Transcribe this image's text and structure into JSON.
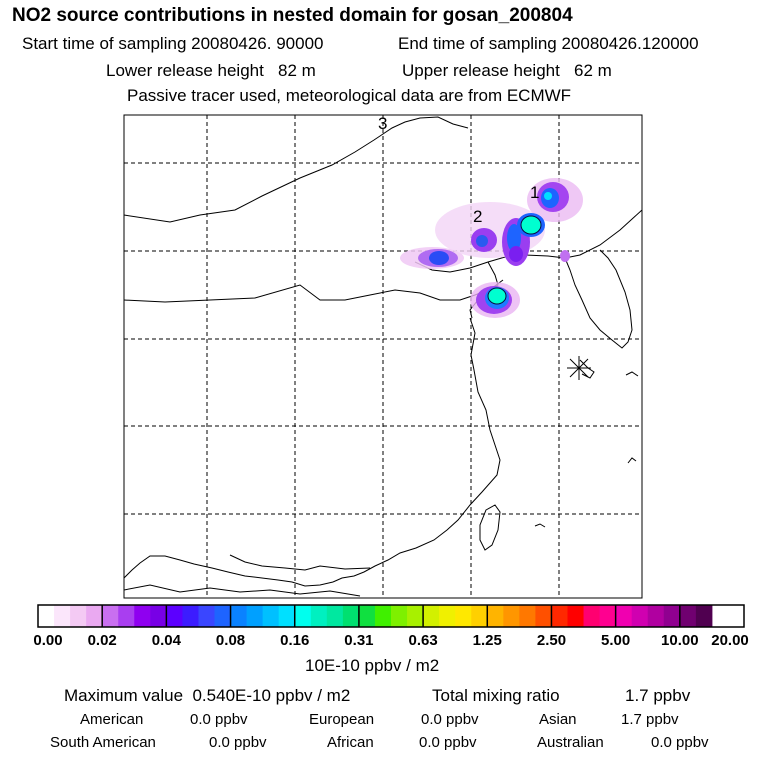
{
  "header": {
    "title": "NO2 source contributions in nested domain for gosan_200804",
    "start": "Start time of sampling 20080426. 90000",
    "end": "End time of sampling 20080426.120000",
    "lower": "Lower release height   82 m",
    "upper": "Upper release height   62 m",
    "note": "Passive tracer used, meteorological data are from ECMWF"
  },
  "map": {
    "markers": [
      "1",
      "2",
      "3"
    ],
    "receptor_symbol": "asterisk-icon"
  },
  "legend": {
    "ticks": [
      "0.00",
      "0.02",
      "0.04",
      "0.08",
      "0.16",
      "0.31",
      "0.63",
      "1.25",
      "2.50",
      "5.00",
      "10.00",
      "20.00"
    ],
    "colors": [
      "#ffffff",
      "#fbe6fb",
      "#f4caf4",
      "#eaa9f1",
      "#c96ff0",
      "#a93ef0",
      "#8f00f0",
      "#7800e6",
      "#5c00ff",
      "#3c1cff",
      "#3a46ff",
      "#1e64ff",
      "#0a82ff",
      "#00a0ff",
      "#00c0ff",
      "#00e0ff",
      "#00ffee",
      "#00f0c0",
      "#00e8a0",
      "#00e070",
      "#10e040",
      "#40f000",
      "#7ef000",
      "#a8f000",
      "#d2f000",
      "#f0f000",
      "#ffe800",
      "#ffd000",
      "#ffb400",
      "#ff9600",
      "#ff7800",
      "#ff5000",
      "#ff2800",
      "#ff0000",
      "#ff0070",
      "#ff0090",
      "#f000b0",
      "#d000b0",
      "#b000a0",
      "#900090",
      "#700070",
      "#500050"
    ],
    "units": "10E-10 ppbv / m2"
  },
  "summary": {
    "max_label": "Maximum value  0.540E-10 ppbv / m2",
    "total_label": "Total mixing ratio",
    "total_value": "1.7 ppbv",
    "regions": [
      {
        "name": "American",
        "value": "0.0 ppbv"
      },
      {
        "name": "European",
        "value": "0.0 ppbv"
      },
      {
        "name": "Asian",
        "value": "1.7 ppbv"
      },
      {
        "name": "South American",
        "value": "0.0 ppbv"
      },
      {
        "name": "African",
        "value": "0.0 ppbv"
      },
      {
        "name": "Australian",
        "value": "0.0 ppbv"
      }
    ]
  }
}
